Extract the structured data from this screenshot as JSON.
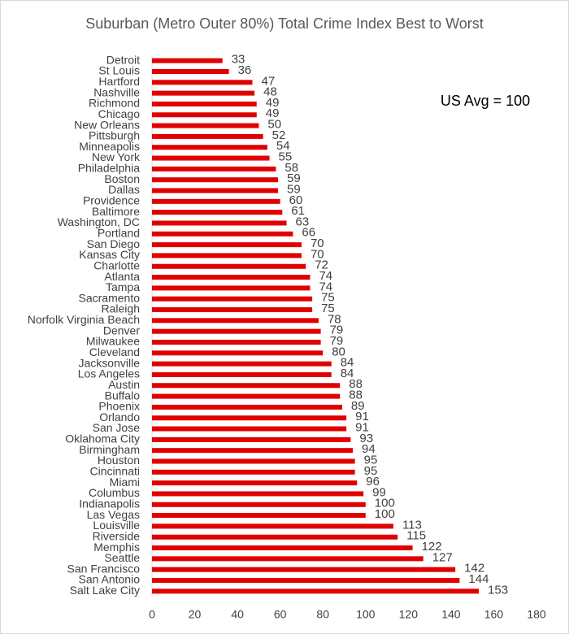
{
  "chart_data": {
    "type": "bar",
    "orientation": "horizontal",
    "title": "Suburban (Metro Outer 80%) Total Crime Index Best to Worst",
    "annotation": "US Avg = 100",
    "color": "#e00000",
    "categories": [
      "Detroit",
      "St Louis",
      "Hartford",
      "Nashville",
      "Richmond",
      "Chicago",
      "New Orleans",
      "Pittsburgh",
      "Minneapolis",
      "New York",
      "Philadelphia",
      "Boston",
      "Dallas",
      "Providence",
      "Baltimore",
      "Washington, DC",
      "Portland",
      "San Diego",
      "Kansas City",
      "Charlotte",
      "Atlanta",
      "Tampa",
      "Sacramento",
      "Raleigh",
      "Norfolk Virginia Beach",
      "Denver",
      "Milwaukee",
      "Cleveland",
      "Jacksonville",
      "Los Angeles",
      "Austin",
      "Buffalo",
      "Phoenix",
      "Orlando",
      "San Jose",
      "Oklahoma City",
      "Birmingham",
      "Houston",
      "Cincinnati",
      "Miami",
      "Columbus",
      "Indianapolis",
      "Las Vegas",
      "Louisville",
      "Riverside",
      "Memphis",
      "Seattle",
      "San Francisco",
      "San Antonio",
      "Salt Lake City"
    ],
    "values": [
      33,
      36,
      47,
      48,
      49,
      49,
      50,
      52,
      54,
      55,
      58,
      59,
      59,
      60,
      61,
      63,
      66,
      70,
      70,
      72,
      74,
      74,
      75,
      75,
      78,
      79,
      79,
      80,
      84,
      84,
      88,
      88,
      89,
      91,
      91,
      93,
      94,
      95,
      95,
      96,
      99,
      100,
      100,
      113,
      115,
      122,
      127,
      142,
      144,
      153
    ],
    "xlim": [
      0,
      180
    ],
    "xticks": [
      0,
      20,
      40,
      60,
      80,
      100,
      120,
      140,
      160,
      180
    ],
    "grid": false
  }
}
